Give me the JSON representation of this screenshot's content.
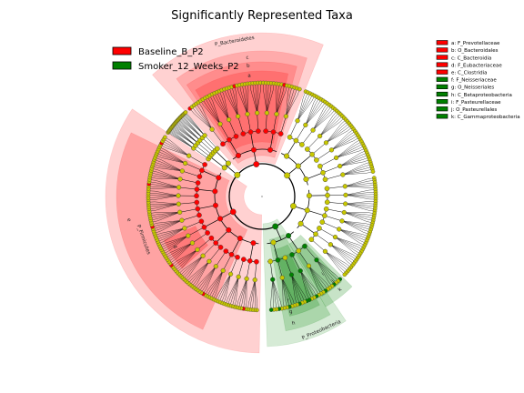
{
  "chart_data": {
    "type": "cladogram",
    "title": "Significantly Represented Taxa",
    "legend_placement": "top-left",
    "groups": [
      {
        "name": "Baseline_B_P2",
        "color": "#ff0000"
      },
      {
        "name": "Smoker_12_Weeks_P2",
        "color": "#008000"
      }
    ],
    "taxa_key": [
      {
        "code": "a",
        "label": "a: F_Prevotellaceae",
        "group": "Baseline_B_P2"
      },
      {
        "code": "b",
        "label": "b: O_Bacteroidales",
        "group": "Baseline_B_P2"
      },
      {
        "code": "c",
        "label": "c: C_Bacteroidia",
        "group": "Baseline_B_P2"
      },
      {
        "code": "d",
        "label": "d: F_Eubacteriaceae",
        "group": "Baseline_B_P2"
      },
      {
        "code": "e",
        "label": "e: C_Clostridia",
        "group": "Baseline_B_P2"
      },
      {
        "code": "f",
        "label": "f: F_Neisseriaceae",
        "group": "Smoker_12_Weeks_P2"
      },
      {
        "code": "g",
        "label": "g: O_Neisseriales",
        "group": "Smoker_12_Weeks_P2"
      },
      {
        "code": "h",
        "label": "h: C_Betaproteobacteria",
        "group": "Smoker_12_Weeks_P2"
      },
      {
        "code": "i",
        "label": "i: F_Pasteurellaceae",
        "group": "Smoker_12_Weeks_P2"
      },
      {
        "code": "j",
        "label": "j: O_Pasteurellales",
        "group": "Smoker_12_Weeks_P2"
      },
      {
        "code": "k",
        "label": "k: C_Gammaproteobacteria",
        "group": "Smoker_12_Weeks_P2"
      }
    ],
    "phylum_labels": [
      "P_Bacteroidetes",
      "P_Firmicutes",
      "P_Proteobacteria"
    ],
    "colors": {
      "red_node": "#ff0000",
      "green_node": "#008000",
      "neutral_node": "#c8c800",
      "red_shade": "#ff0000",
      "green_shade": "#008000"
    }
  }
}
